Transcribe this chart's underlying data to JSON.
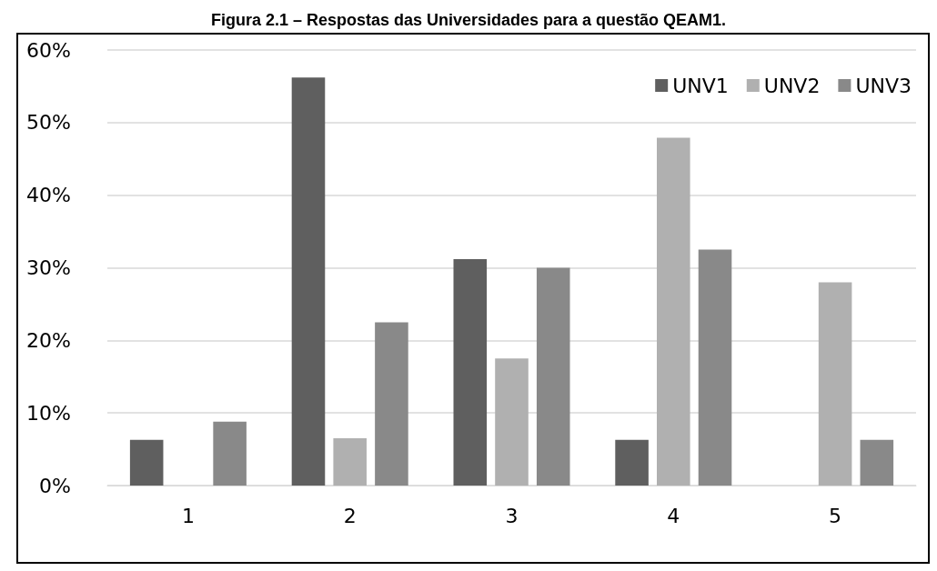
{
  "chart_data": {
    "type": "bar",
    "title": "Figura 2.1 – Respostas das Universidades para a questão QEAM1.",
    "categories": [
      "1",
      "2",
      "3",
      "4",
      "5"
    ],
    "series": [
      {
        "name": "UNV1",
        "color": "#5f5f5f",
        "values": [
          6.3,
          56.2,
          31.2,
          6.3,
          0
        ]
      },
      {
        "name": "UNV2",
        "color": "#b0b0b0",
        "values": [
          0,
          6.5,
          17.5,
          47.9,
          28
        ]
      },
      {
        "name": "UNV3",
        "color": "#898989",
        "values": [
          8.8,
          22.5,
          30,
          32.5,
          6.3
        ]
      }
    ],
    "ylim": [
      0,
      60
    ],
    "yticks": [
      {
        "value": 0,
        "label": "0%"
      },
      {
        "value": 10,
        "label": "10%"
      },
      {
        "value": 20,
        "label": "20%"
      },
      {
        "value": 30,
        "label": "30%"
      },
      {
        "value": 40,
        "label": "40%"
      },
      {
        "value": 50,
        "label": "50%"
      },
      {
        "value": 60,
        "label": "60%"
      }
    ],
    "grid": "y",
    "legend": "top right"
  }
}
